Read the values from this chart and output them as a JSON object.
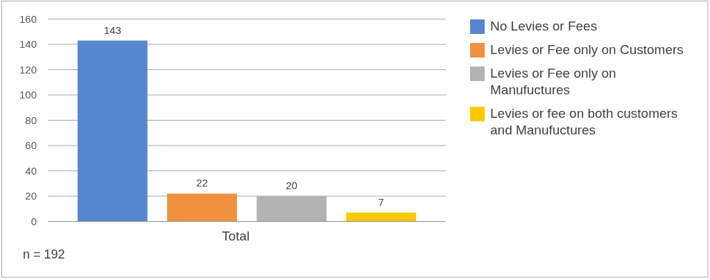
{
  "chart_data": {
    "type": "bar",
    "categories": [
      "Total"
    ],
    "series": [
      {
        "name": "No Levies or Fees",
        "color": "#5588d0",
        "values": [
          143
        ]
      },
      {
        "name": "Levies or Fee only on Customers",
        "color": "#f0913f",
        "values": [
          22
        ]
      },
      {
        "name": "Levies or Fee only on Manufuctures",
        "color": "#b3b3b3",
        "values": [
          20
        ]
      },
      {
        "name": "Levies or fee on both customers and Manufuctures",
        "color": "#fec901",
        "values": [
          7
        ]
      }
    ],
    "ylim": [
      0,
      160
    ],
    "yticks": [
      0,
      20,
      40,
      60,
      80,
      100,
      120,
      140,
      160
    ],
    "grid": "y",
    "legend": "right",
    "data_labels": true,
    "annotations": [
      "n = 192"
    ]
  }
}
